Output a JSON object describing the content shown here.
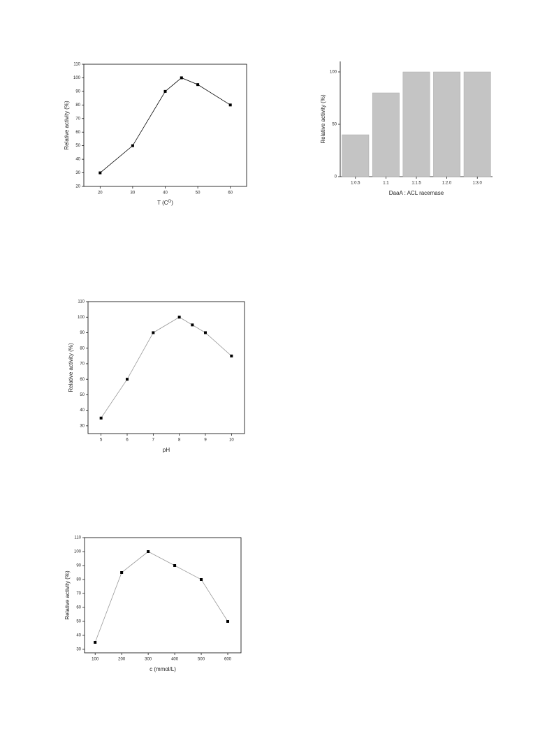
{
  "chart_data": [
    {
      "type": "line",
      "xlabel": [
        "T (C",
        "O",
        ")"
      ],
      "ylabel": "Relative activity (%)",
      "color": "#000000",
      "x": [
        20,
        30,
        40,
        45,
        50,
        60
      ],
      "values": [
        30,
        50,
        90,
        100,
        95,
        80
      ],
      "xlim": [
        15,
        65
      ],
      "xticks": [
        20,
        30,
        40,
        50,
        60
      ],
      "ylim": [
        20,
        110
      ],
      "yticks": [
        20,
        30,
        40,
        50,
        60,
        70,
        80,
        90,
        100,
        110
      ]
    },
    {
      "type": "bar",
      "xlabel": [
        "DaaA : ACL racemase"
      ],
      "ylabel": "Relative activity (%)",
      "color": "#c4c4c4",
      "categories": [
        "1:0.5",
        "1:1",
        "1:1.5",
        "1:2.0",
        "1:3.0"
      ],
      "values": [
        40,
        80,
        100,
        100,
        100
      ],
      "ylim": [
        0,
        110
      ],
      "yticks": [
        0,
        50,
        100
      ]
    },
    {
      "type": "line",
      "xlabel": [
        "pH"
      ],
      "ylabel": "Relative activity (%)",
      "color": "#999999",
      "x": [
        5,
        6,
        7,
        8,
        8.5,
        9,
        10
      ],
      "values": [
        35,
        60,
        90,
        100,
        95,
        90,
        75
      ],
      "xlim": [
        4.5,
        10.5
      ],
      "xticks": [
        5,
        6,
        7,
        8,
        9,
        10
      ],
      "ylim": [
        25,
        110
      ],
      "yticks": [
        30,
        40,
        50,
        60,
        70,
        80,
        90,
        100,
        110
      ]
    },
    {
      "type": "line",
      "xlabel": [
        "c (mmol/L)"
      ],
      "ylabel": "Relative activity (%)",
      "color": "#999999",
      "x": [
        100,
        200,
        300,
        400,
        500,
        600
      ],
      "values": [
        35,
        85,
        100,
        90,
        80,
        50
      ],
      "xlim": [
        60,
        650
      ],
      "xticks": [
        100,
        200,
        300,
        400,
        500,
        600
      ],
      "ylim": [
        27.5,
        110
      ],
      "yticks": [
        30,
        40,
        50,
        60,
        70,
        80,
        90,
        100,
        110
      ]
    }
  ]
}
